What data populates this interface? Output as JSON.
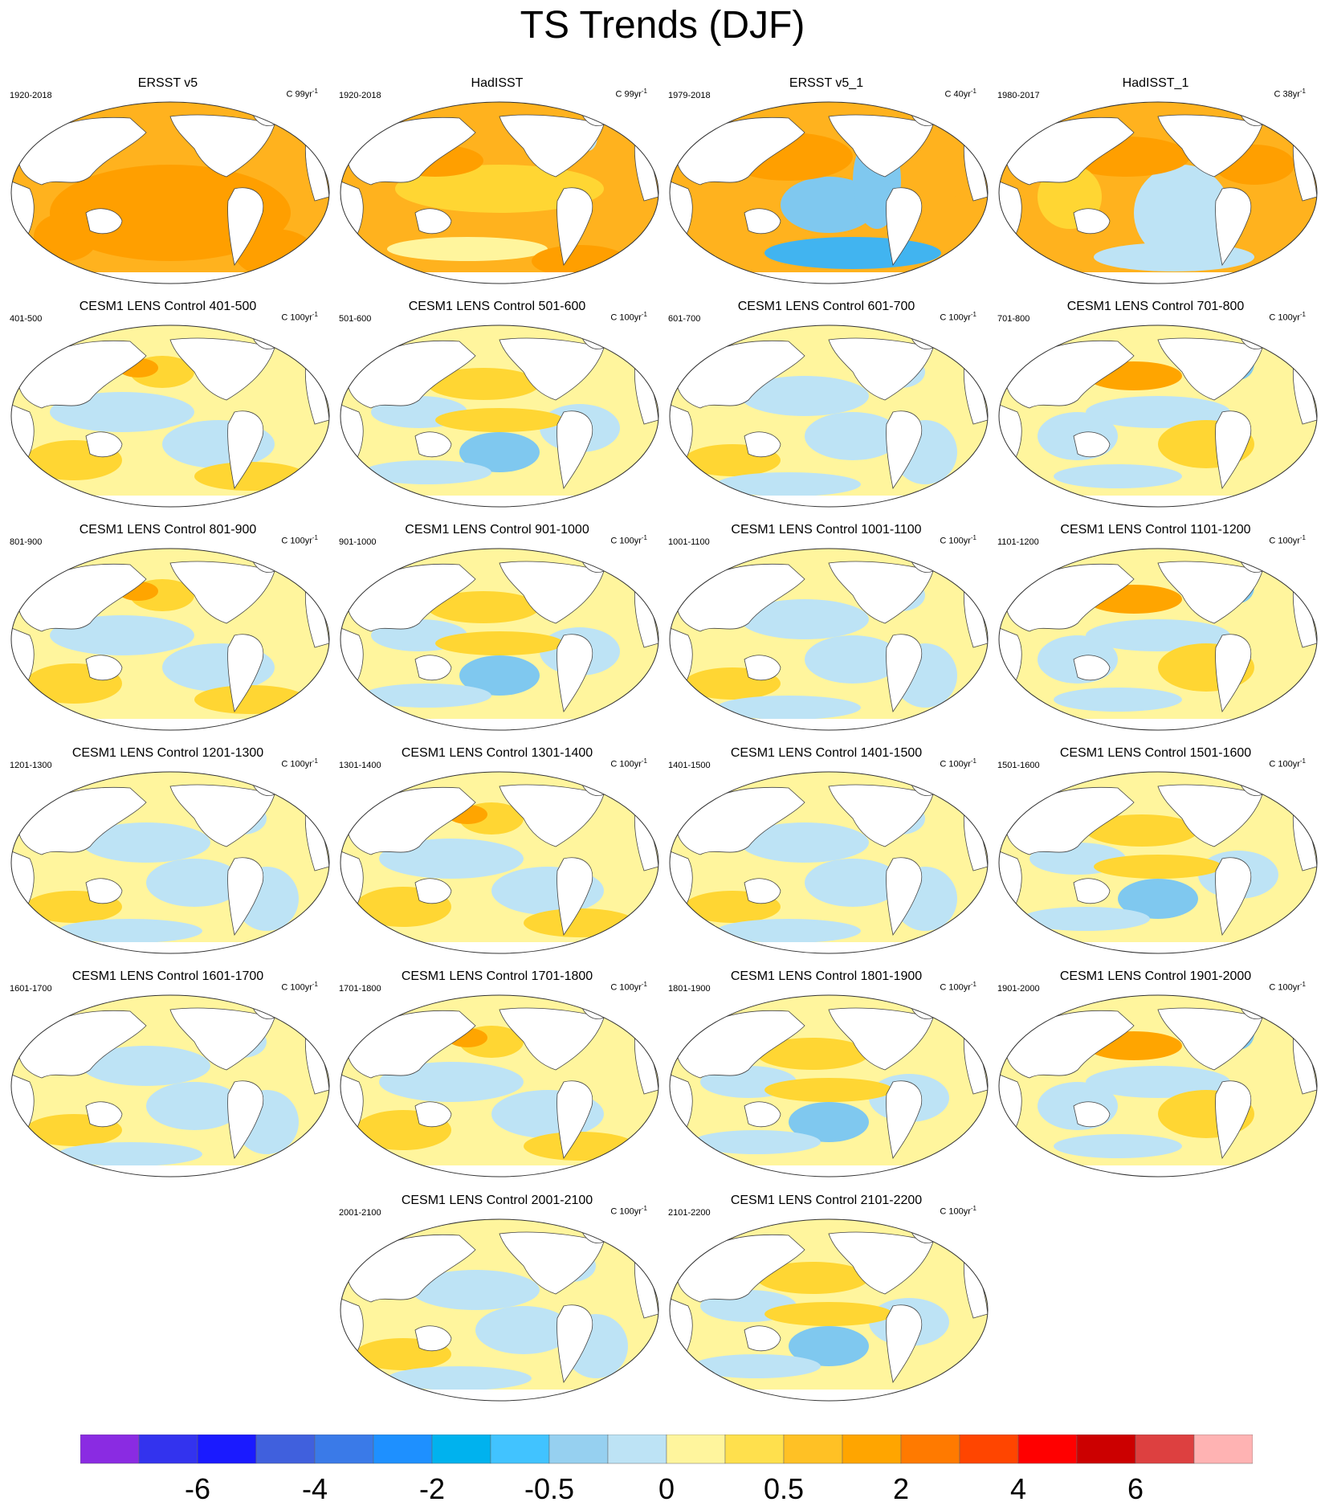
{
  "title": "TS Trends (DJF)",
  "panels": [
    {
      "title": "ERSST v5",
      "period": "1920-2018",
      "units": "C 99yr",
      "scheme": "obs-warm"
    },
    {
      "title": "HadISST",
      "period": "1920-2018",
      "units": "C 99yr",
      "scheme": "obs-warm2"
    },
    {
      "title": "ERSST v5_1",
      "period": "1979-2018",
      "units": "C 40yr",
      "scheme": "obs-mixed"
    },
    {
      "title": "HadISST_1",
      "period": "1980-2017",
      "units": "C 38yr",
      "scheme": "obs-mixed2"
    },
    {
      "title": "CESM1 LENS Control 401-500",
      "period": "401-500",
      "units": "C 100yr",
      "scheme": "a"
    },
    {
      "title": "CESM1 LENS Control 501-600",
      "period": "501-600",
      "units": "C 100yr",
      "scheme": "b"
    },
    {
      "title": "CESM1 LENS Control 601-700",
      "period": "601-700",
      "units": "C 100yr",
      "scheme": "c"
    },
    {
      "title": "CESM1 LENS Control 701-800",
      "period": "701-800",
      "units": "C 100yr",
      "scheme": "d"
    },
    {
      "title": "CESM1 LENS Control 801-900",
      "period": "801-900",
      "units": "C 100yr",
      "scheme": "a"
    },
    {
      "title": "CESM1 LENS Control 901-1000",
      "period": "901-1000",
      "units": "C 100yr",
      "scheme": "b"
    },
    {
      "title": "CESM1 LENS Control 1001-1100",
      "period": "1001-1100",
      "units": "C 100yr",
      "scheme": "c"
    },
    {
      "title": "CESM1 LENS Control 1101-1200",
      "period": "1101-1200",
      "units": "C 100yr",
      "scheme": "d"
    },
    {
      "title": "CESM1 LENS Control 1201-1300",
      "period": "1201-1300",
      "units": "C 100yr",
      "scheme": "c"
    },
    {
      "title": "CESM1 LENS Control 1301-1400",
      "period": "1301-1400",
      "units": "C 100yr",
      "scheme": "a"
    },
    {
      "title": "CESM1 LENS Control 1401-1500",
      "period": "1401-1500",
      "units": "C 100yr",
      "scheme": "c"
    },
    {
      "title": "CESM1 LENS Control 1501-1600",
      "period": "1501-1600",
      "units": "C 100yr",
      "scheme": "b"
    },
    {
      "title": "CESM1 LENS Control 1601-1700",
      "period": "1601-1700",
      "units": "C 100yr",
      "scheme": "c"
    },
    {
      "title": "CESM1 LENS Control 1701-1800",
      "period": "1701-1800",
      "units": "C 100yr",
      "scheme": "a"
    },
    {
      "title": "CESM1 LENS Control 1801-1900",
      "period": "1801-1900",
      "units": "C 100yr",
      "scheme": "b"
    },
    {
      "title": "CESM1 LENS Control 1901-2000",
      "period": "1901-2000",
      "units": "C 100yr",
      "scheme": "d"
    },
    {
      "title": "CESM1 LENS Control 2001-2100",
      "period": "2001-2100",
      "units": "C 100yr",
      "scheme": "c"
    },
    {
      "title": "CESM1 LENS Control 2101-2200",
      "period": "2101-2200",
      "units": "C 100yr",
      "scheme": "b"
    }
  ],
  "colorbar": {
    "colors": [
      "#8a2be2",
      "#3333ee",
      "#1a1aff",
      "#4060dd",
      "#3a7ae8",
      "#1e90ff",
      "#00b2ee",
      "#41c3ff",
      "#96d0f0",
      "#bde3f5",
      "#fff59d",
      "#ffe04d",
      "#ffc125",
      "#ffa500",
      "#ff7a00",
      "#ff4500",
      "#ff0000",
      "#cc0000",
      "#dd4040",
      "#ffb3b3"
    ],
    "labels": [
      "-6",
      "-4",
      "-2",
      "-0.5",
      "0",
      "0.5",
      "2",
      "4",
      "6"
    ]
  }
}
